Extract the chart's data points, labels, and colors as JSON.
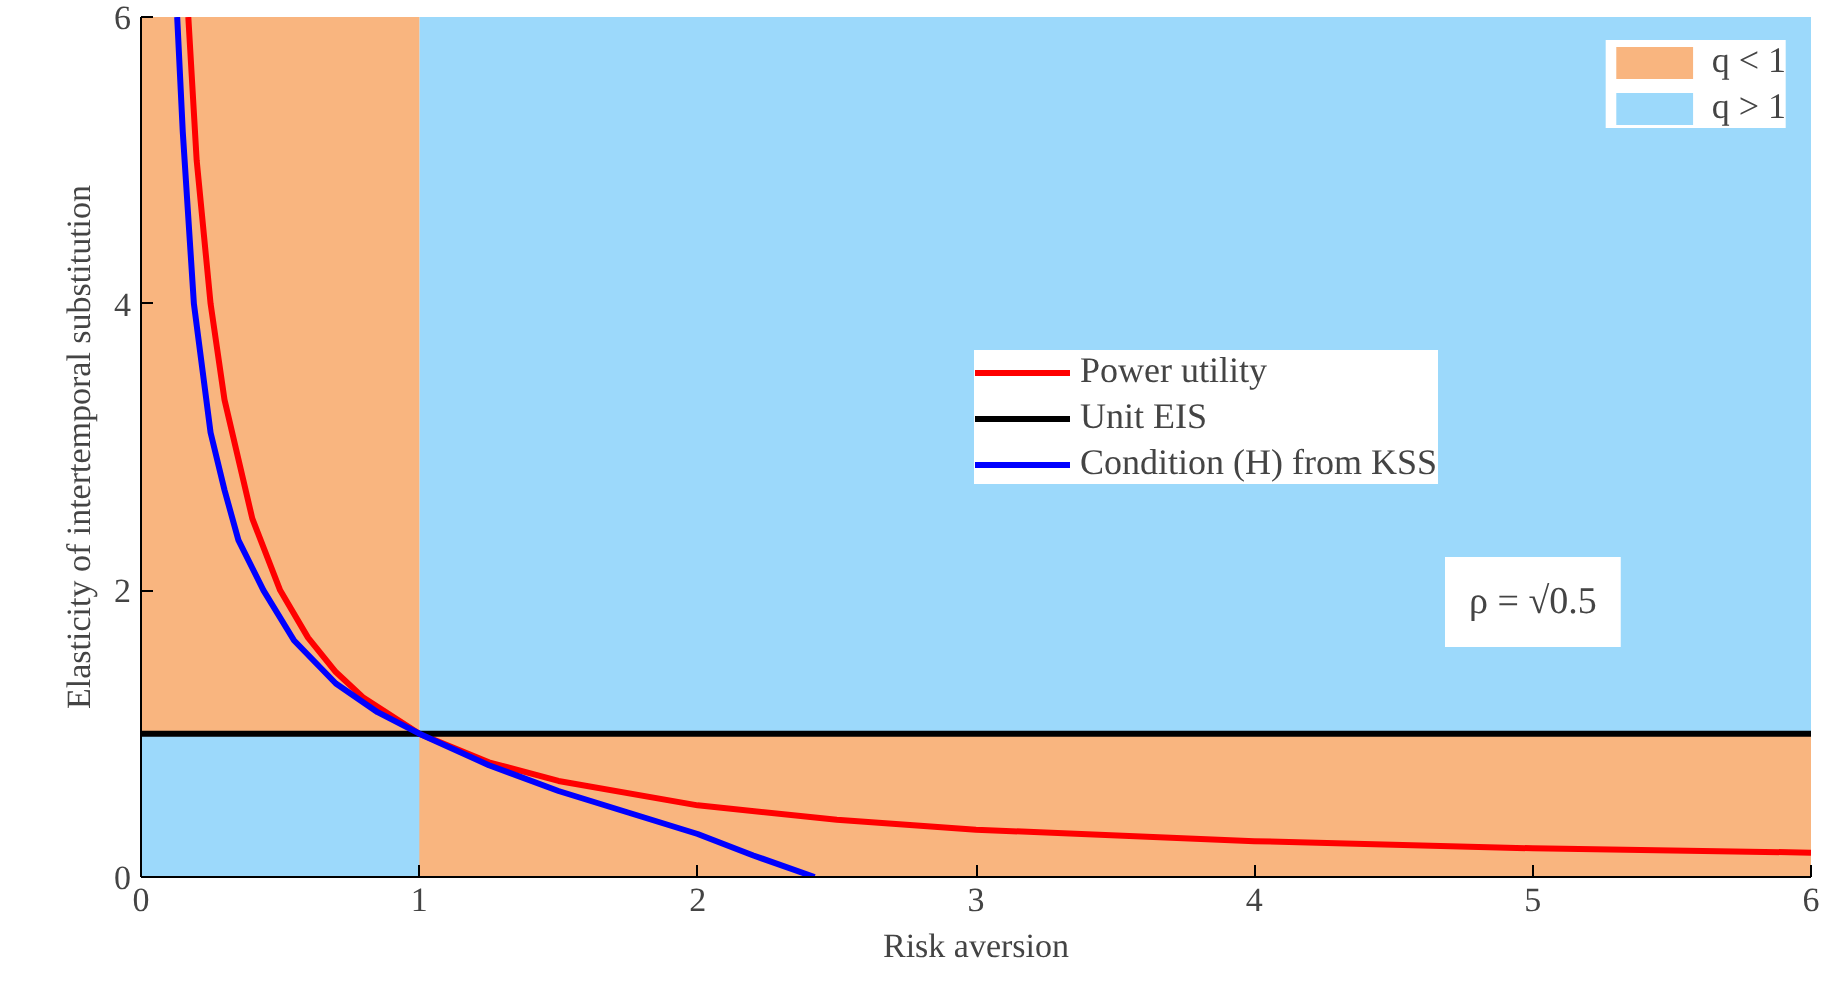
{
  "chart_data": {
    "type": "line",
    "xlabel": "Risk aversion",
    "ylabel": "Elasticity of intertemporal substitution",
    "xlim": [
      0,
      6
    ],
    "ylim": [
      0,
      6
    ],
    "xticks": [
      0,
      1,
      2,
      3,
      4,
      5,
      6
    ],
    "yticks": [
      0,
      2,
      4,
      6
    ],
    "grid": false,
    "legend": "top right",
    "marker": "none",
    "line_style": "solid",
    "series": [
      {
        "type": "area",
        "name": "q > 1",
        "color": "#9cd9fb",
        "x": [
          1,
          6
        ],
        "values": [
          6,
          6
        ]
      },
      {
        "type": "area",
        "name": "q < 1",
        "color": "#f9b57f",
        "x": [
          0,
          1,
          1,
          6
        ],
        "values": [
          6,
          6,
          1,
          1
        ]
      },
      {
        "type": "area",
        "color": "#9cd9fb",
        "x": [
          0,
          1
        ],
        "values": [
          1,
          1
        ]
      },
      {
        "name": "Power utility",
        "color": "#ff0000",
        "x": [
          0.17,
          0.2,
          0.25,
          0.3,
          0.4,
          0.5,
          0.6,
          0.7,
          0.8,
          1,
          1.25,
          1.5,
          2,
          2.5,
          3,
          4,
          5,
          6
        ],
        "values": [
          6,
          5,
          4,
          3.33,
          2.5,
          2,
          1.67,
          1.43,
          1.25,
          1,
          0.8,
          0.67,
          0.5,
          0.4,
          0.33,
          0.25,
          0.2,
          0.17
        ]
      },
      {
        "name": "Unit EIS",
        "color": "#000000",
        "x": [
          0,
          6
        ],
        "values": [
          1,
          1
        ]
      },
      {
        "name": "Condition (H) from KSS",
        "color": "#0000ff",
        "x": [
          0.13,
          0.15,
          0.19,
          0.25,
          0.3,
          0.35,
          0.44,
          0.55,
          0.7,
          0.85,
          1,
          1.25,
          1.5,
          1.75,
          2,
          2.2,
          2.42
        ],
        "values": [
          6,
          5.2,
          4,
          3.1,
          2.7,
          2.35,
          2,
          1.65,
          1.35,
          1.15,
          1,
          0.78,
          0.6,
          0.45,
          0.3,
          0.15,
          0
        ]
      }
    ],
    "annotations": [
      "ρ = √0.5"
    ]
  }
}
